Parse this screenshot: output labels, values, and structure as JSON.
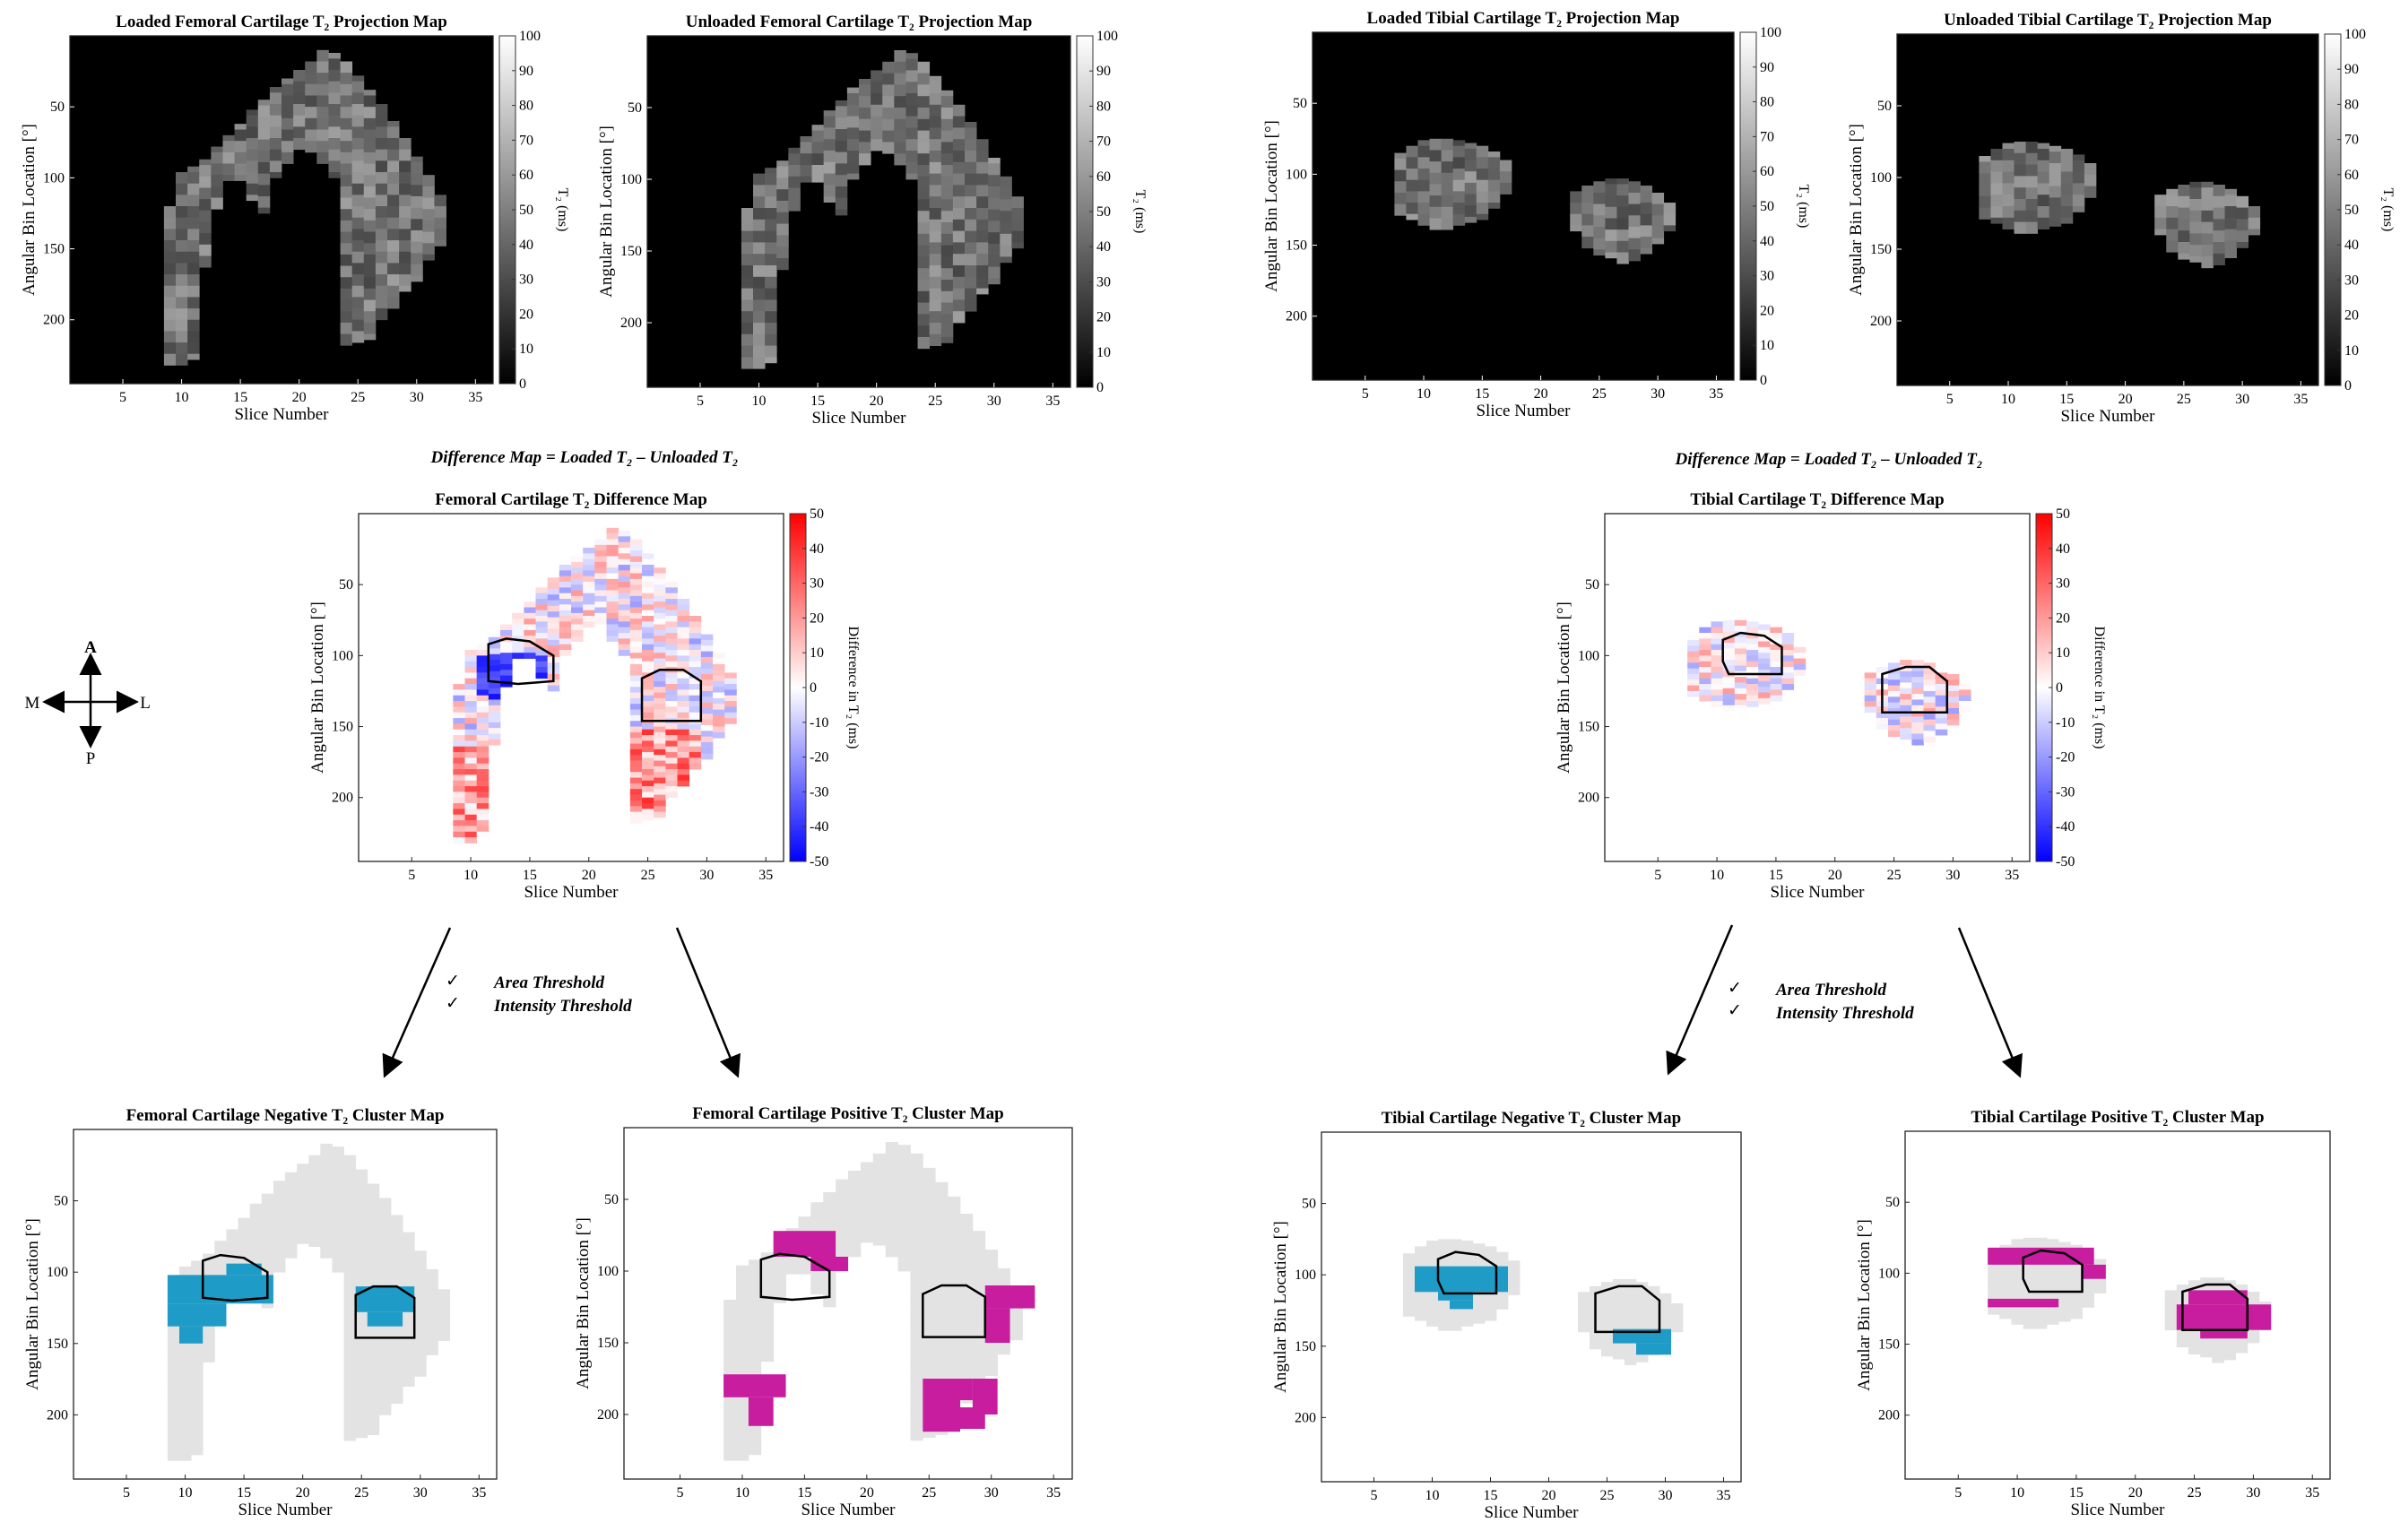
{
  "figure": {
    "femoral": {
      "loaded_title": "Loaded Femoral Cartilage T₂ Projection Map",
      "unloaded_title": "Unloaded Femoral Cartilage T₂ Projection Map",
      "formula": "Difference Map = Loaded T₂ – Unloaded T₂",
      "difference_title": "Femoral Cartilage T₂ Difference Map",
      "negative_title": "Femoral Cartilage Negative T₂ Cluster Map",
      "positive_title": "Femoral Cartilage Positive T₂ Cluster Map"
    },
    "tibial": {
      "loaded_title": "Loaded Tibial Cartilage T₂ Projection Map",
      "unloaded_title": "Unloaded Tibial Cartilage T₂ Projection Map",
      "formula": "Difference Map = Loaded T₂ – Unloaded T₂",
      "difference_title": "Tibial Cartilage T₂ Difference Map",
      "negative_title": "Tibial Cartilage Negative T₂ Cluster Map",
      "positive_title": "Tibial Cartilage Positive T₂ Cluster Map"
    },
    "axes": {
      "xlabel": "Slice Number",
      "ylabel": "Angular Bin Location [°]",
      "x_ticks": [
        "5",
        "10",
        "15",
        "20",
        "25",
        "30",
        "35"
      ],
      "y_ticks": [
        "50",
        "100",
        "150",
        "200"
      ]
    },
    "colorbars": {
      "t2_label": "T₂ (ms)",
      "t2_ticks": [
        "0",
        "10",
        "20",
        "30",
        "40",
        "50",
        "60",
        "70",
        "80",
        "90",
        "100"
      ],
      "diff_label": "Difference in T₂ (ms)",
      "diff_ticks": [
        "-50",
        "-40",
        "-30",
        "-20",
        "-10",
        "0",
        "10",
        "20",
        "30",
        "40",
        "50"
      ]
    },
    "thresholds": {
      "area": "Area Threshold",
      "intensity": "Intensity Threshold",
      "check": "✓"
    },
    "orientation": {
      "a": "A",
      "p": "P",
      "m": "M",
      "l": "L"
    }
  },
  "colors": {
    "negative_cluster": "#1e9bc7",
    "positive_cluster": "#c81d9e",
    "cartilage_mask": "#e3e3e3",
    "diff_high": "#ff0000",
    "diff_low": "#0000ff"
  }
}
